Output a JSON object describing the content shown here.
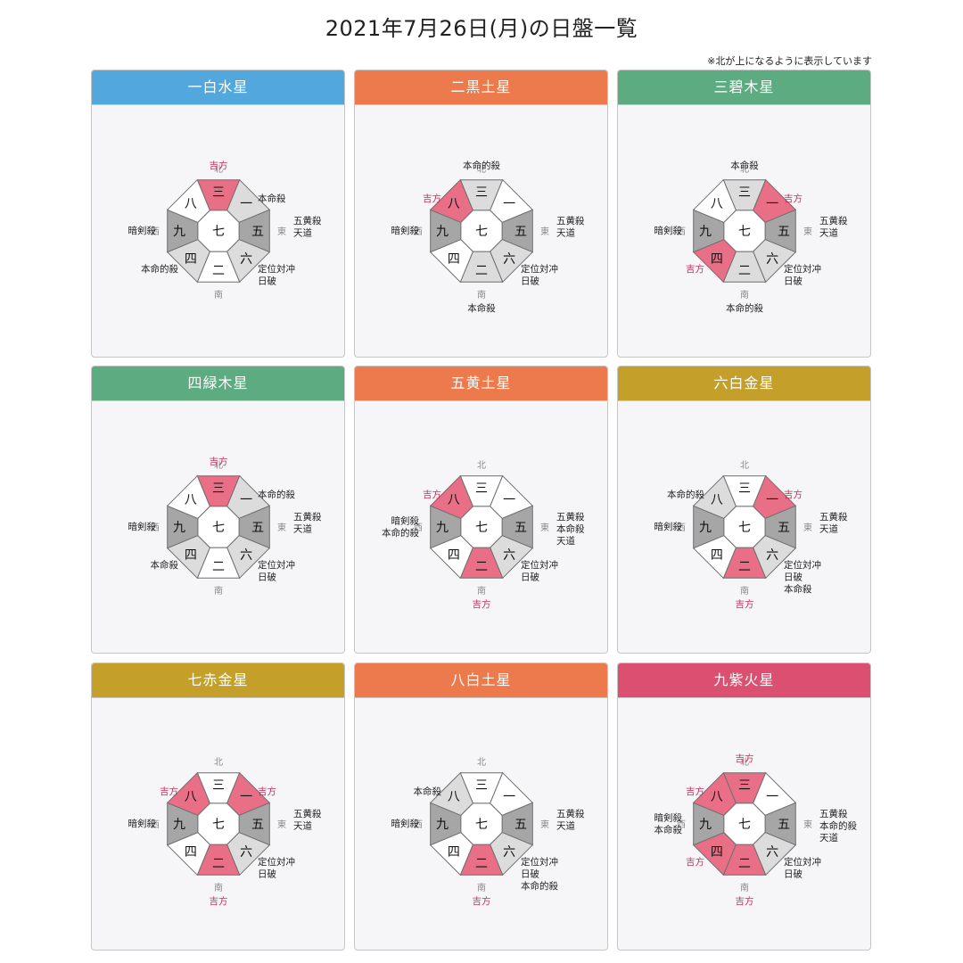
{
  "title": "2021年7月26日(月)の日盤一覧",
  "note": "※北が上になるように表示しています",
  "directions": {
    "north": "北",
    "south": "南",
    "east": "東",
    "west": "西"
  },
  "colors": {
    "lucky": "#e86f85",
    "lucky_text": "#c8325a",
    "gray_dark": "#a6a6a6",
    "gray_light": "#dcdcdc",
    "white": "#ffffff",
    "edge": "#6f6f6f",
    "axis": "#c4c4c4"
  },
  "legend_values": {
    "lucky": "lucky",
    "dark": "dark",
    "light": "light",
    "white": "white"
  },
  "cards": [
    {
      "name": "一白水星",
      "header_color": "#52a7dd",
      "cells": {
        "center": "七",
        "n": "三",
        "ne": "一",
        "e": "五",
        "se": "六",
        "s": "二",
        "sw": "四",
        "w": "九",
        "nw": "八"
      },
      "fills": {
        "center": "white",
        "n": "lucky",
        "ne": "light",
        "e": "dark",
        "se": "light",
        "s": "white",
        "sw": "light",
        "w": "dark",
        "nw": "white"
      },
      "labels": {
        "n": [
          "吉方"
        ],
        "ne": [
          "本命殺"
        ],
        "e": [
          "五黄殺",
          "天道"
        ],
        "se": [
          "定位対冲",
          "日破"
        ],
        "s": [],
        "sw": [
          "本命的殺"
        ],
        "w": [
          "暗剣殺"
        ],
        "nw": []
      },
      "lucky": {
        "n": true
      }
    },
    {
      "name": "二黒土星",
      "header_color": "#ed7a4c",
      "cells": {
        "center": "七",
        "n": "三",
        "ne": "一",
        "e": "五",
        "se": "六",
        "s": "二",
        "sw": "四",
        "w": "九",
        "nw": "八"
      },
      "fills": {
        "center": "white",
        "n": "light",
        "ne": "white",
        "e": "dark",
        "se": "light",
        "s": "light",
        "sw": "white",
        "w": "dark",
        "nw": "lucky"
      },
      "labels": {
        "n": [
          "本命的殺"
        ],
        "ne": [],
        "e": [
          "五黄殺",
          "天道"
        ],
        "se": [
          "定位対冲",
          "日破"
        ],
        "s": [
          "本命殺"
        ],
        "sw": [],
        "w": [
          "暗剣殺"
        ],
        "nw": [
          "吉方"
        ]
      },
      "lucky": {
        "nw": true
      }
    },
    {
      "name": "三碧木星",
      "header_color": "#5dab81",
      "cells": {
        "center": "七",
        "n": "三",
        "ne": "一",
        "e": "五",
        "se": "六",
        "s": "二",
        "sw": "四",
        "w": "九",
        "nw": "八"
      },
      "fills": {
        "center": "white",
        "n": "light",
        "ne": "lucky",
        "e": "dark",
        "se": "light",
        "s": "light",
        "sw": "lucky",
        "w": "dark",
        "nw": "white"
      },
      "labels": {
        "n": [
          "本命殺"
        ],
        "ne": [
          "吉方"
        ],
        "e": [
          "五黄殺",
          "天道"
        ],
        "se": [
          "定位対冲",
          "日破"
        ],
        "s": [
          "本命的殺"
        ],
        "sw": [
          "吉方"
        ],
        "w": [
          "暗剣殺"
        ],
        "nw": []
      },
      "lucky": {
        "ne": true,
        "sw": true
      }
    },
    {
      "name": "四緑木星",
      "header_color": "#5dab81",
      "cells": {
        "center": "七",
        "n": "三",
        "ne": "一",
        "e": "五",
        "se": "六",
        "s": "二",
        "sw": "四",
        "w": "九",
        "nw": "八"
      },
      "fills": {
        "center": "white",
        "n": "lucky",
        "ne": "light",
        "e": "dark",
        "se": "light",
        "s": "white",
        "sw": "light",
        "w": "dark",
        "nw": "white"
      },
      "labels": {
        "n": [
          "吉方"
        ],
        "ne": [
          "本命的殺"
        ],
        "e": [
          "五黄殺",
          "天道"
        ],
        "se": [
          "定位対冲",
          "日破"
        ],
        "s": [],
        "sw": [
          "本命殺"
        ],
        "w": [
          "暗剣殺"
        ],
        "nw": []
      },
      "lucky": {
        "n": true
      }
    },
    {
      "name": "五黄土星",
      "header_color": "#ed7a4c",
      "cells": {
        "center": "七",
        "n": "三",
        "ne": "一",
        "e": "五",
        "se": "六",
        "s": "二",
        "sw": "四",
        "w": "九",
        "nw": "八"
      },
      "fills": {
        "center": "white",
        "n": "white",
        "ne": "white",
        "e": "dark",
        "se": "light",
        "s": "lucky",
        "sw": "white",
        "w": "dark",
        "nw": "lucky"
      },
      "labels": {
        "n": [],
        "ne": [],
        "e": [
          "五黄殺",
          "本命殺",
          "天道"
        ],
        "se": [
          "定位対冲",
          "日破"
        ],
        "s": [
          "吉方"
        ],
        "sw": [],
        "w": [
          "暗剣殺",
          "本命的殺"
        ],
        "nw": [
          "吉方"
        ]
      },
      "lucky": {
        "s": true,
        "nw": true
      }
    },
    {
      "name": "六白金星",
      "header_color": "#c4a02a",
      "cells": {
        "center": "七",
        "n": "三",
        "ne": "一",
        "e": "五",
        "se": "六",
        "s": "二",
        "sw": "四",
        "w": "九",
        "nw": "八"
      },
      "fills": {
        "center": "white",
        "n": "white",
        "ne": "lucky",
        "e": "dark",
        "se": "light",
        "s": "lucky",
        "sw": "white",
        "w": "dark",
        "nw": "light"
      },
      "labels": {
        "n": [],
        "ne": [
          "吉方"
        ],
        "e": [
          "五黄殺",
          "天道"
        ],
        "se": [
          "定位対冲",
          "日破",
          "本命殺"
        ],
        "s": [
          "吉方"
        ],
        "sw": [],
        "w": [
          "暗剣殺"
        ],
        "nw": [
          "本命的殺"
        ]
      },
      "lucky": {
        "ne": true,
        "s": true
      }
    },
    {
      "name": "七赤金星",
      "header_color": "#c4a02a",
      "cells": {
        "center": "七",
        "n": "三",
        "ne": "一",
        "e": "五",
        "se": "六",
        "s": "二",
        "sw": "四",
        "w": "九",
        "nw": "八"
      },
      "fills": {
        "center": "white",
        "n": "white",
        "ne": "lucky",
        "e": "dark",
        "se": "light",
        "s": "lucky",
        "sw": "white",
        "w": "dark",
        "nw": "lucky"
      },
      "labels": {
        "n": [],
        "ne": [
          "吉方"
        ],
        "e": [
          "五黄殺",
          "天道"
        ],
        "se": [
          "定位対冲",
          "日破"
        ],
        "s": [
          "吉方"
        ],
        "sw": [],
        "w": [
          "暗剣殺"
        ],
        "nw": [
          "吉方"
        ]
      },
      "lucky": {
        "ne": true,
        "s": true,
        "nw": true
      }
    },
    {
      "name": "八白土星",
      "header_color": "#ed7a4c",
      "cells": {
        "center": "七",
        "n": "三",
        "ne": "一",
        "e": "五",
        "se": "六",
        "s": "二",
        "sw": "四",
        "w": "九",
        "nw": "八"
      },
      "fills": {
        "center": "white",
        "n": "white",
        "ne": "white",
        "e": "dark",
        "se": "light",
        "s": "lucky",
        "sw": "white",
        "w": "dark",
        "nw": "light"
      },
      "labels": {
        "n": [],
        "ne": [],
        "e": [
          "五黄殺",
          "天道"
        ],
        "se": [
          "定位対冲",
          "日破",
          "本命的殺"
        ],
        "s": [
          "吉方"
        ],
        "sw": [],
        "w": [
          "暗剣殺"
        ],
        "nw": [
          "本命殺"
        ]
      },
      "lucky": {
        "s": true
      }
    },
    {
      "name": "九紫火星",
      "header_color": "#db5070",
      "cells": {
        "center": "七",
        "n": "三",
        "ne": "一",
        "e": "五",
        "se": "六",
        "s": "二",
        "sw": "四",
        "w": "九",
        "nw": "八"
      },
      "fills": {
        "center": "white",
        "n": "lucky",
        "ne": "white",
        "e": "dark",
        "se": "light",
        "s": "lucky",
        "sw": "lucky",
        "w": "dark",
        "nw": "lucky"
      },
      "labels": {
        "n": [
          "吉方"
        ],
        "ne": [],
        "e": [
          "五黄殺",
          "本命的殺",
          "天道"
        ],
        "se": [
          "定位対冲",
          "日破"
        ],
        "s": [
          "吉方"
        ],
        "sw": [
          "吉方"
        ],
        "w": [
          "暗剣殺",
          "本命殺"
        ],
        "nw": [
          "吉方"
        ]
      },
      "lucky": {
        "n": true,
        "s": true,
        "sw": true,
        "nw": true
      }
    }
  ]
}
